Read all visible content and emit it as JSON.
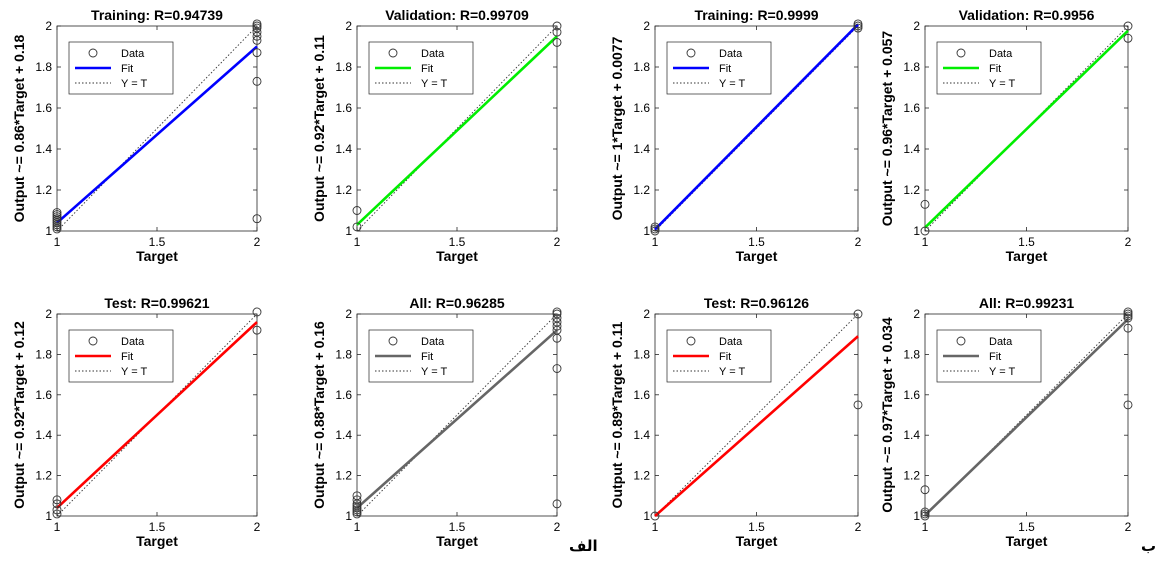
{
  "panel_tags": {
    "a": "الف",
    "b": "ب"
  },
  "legend": {
    "data": "Data",
    "fit": "Fit",
    "yt": "Y = T"
  },
  "colors": {
    "training": "#0000ff",
    "validation": "#00ee00",
    "test": "#ff0000",
    "all": "#666666"
  },
  "chart_data": [
    {
      "type": "scatter",
      "title": "Training: R=0.94739",
      "xlabel": "Target",
      "ylabel": "Output ~= 0.86*Target + 0.18",
      "xlim": [
        1,
        2
      ],
      "ylim": [
        1,
        2
      ],
      "xticks": [
        "1",
        "1.5",
        "2"
      ],
      "yticks": [
        "1",
        "1.2",
        "1.4",
        "1.6",
        "1.8",
        "2"
      ],
      "fit": {
        "slope": 0.86,
        "intercept": 0.18,
        "color": "training"
      },
      "points": [
        [
          1,
          1.01
        ],
        [
          1,
          1.02
        ],
        [
          1,
          1.03
        ],
        [
          1,
          1.04
        ],
        [
          1,
          1.05
        ],
        [
          1,
          1.06
        ],
        [
          1,
          1.07
        ],
        [
          1,
          1.08
        ],
        [
          1,
          1.09
        ],
        [
          2,
          2.01
        ],
        [
          2,
          2.0
        ],
        [
          2,
          1.99
        ],
        [
          2,
          1.97
        ],
        [
          2,
          1.95
        ],
        [
          2,
          1.93
        ],
        [
          2,
          1.87
        ],
        [
          2,
          1.73
        ],
        [
          2,
          1.06
        ]
      ]
    },
    {
      "type": "scatter",
      "title": "Validation: R=0.99709",
      "xlabel": "Target",
      "ylabel": "Output ~= 0.92*Target + 0.11",
      "xlim": [
        1,
        2
      ],
      "ylim": [
        1,
        2
      ],
      "xticks": [
        "1",
        "1.5",
        "2"
      ],
      "yticks": [
        "1",
        "1.2",
        "1.4",
        "1.6",
        "1.8",
        "2"
      ],
      "fit": {
        "slope": 0.92,
        "intercept": 0.11,
        "color": "validation"
      },
      "points": [
        [
          1,
          1.1
        ],
        [
          1,
          1.02
        ],
        [
          2,
          2.0
        ],
        [
          2,
          1.97
        ],
        [
          2,
          1.92
        ]
      ]
    },
    {
      "type": "scatter",
      "title": "Test: R=0.99621",
      "xlabel": "Target",
      "ylabel": "Output ~= 0.92*Target + 0.12",
      "xlim": [
        1,
        2
      ],
      "ylim": [
        1,
        2
      ],
      "xticks": [
        "1",
        "1.5",
        "2"
      ],
      "yticks": [
        "1",
        "1.2",
        "1.4",
        "1.6",
        "1.8",
        "2"
      ],
      "fit": {
        "slope": 0.92,
        "intercept": 0.12,
        "color": "test"
      },
      "points": [
        [
          1,
          1.08
        ],
        [
          1,
          1.06
        ],
        [
          1,
          1.03
        ],
        [
          1,
          1.01
        ],
        [
          2,
          2.01
        ],
        [
          2,
          1.92
        ]
      ]
    },
    {
      "type": "scatter",
      "title": "All: R=0.96285",
      "xlabel": "Target",
      "ylabel": "Output ~= 0.88*Target + 0.16",
      "xlim": [
        1,
        2
      ],
      "ylim": [
        1,
        2
      ],
      "xticks": [
        "1",
        "1.5",
        "2"
      ],
      "yticks": [
        "1",
        "1.2",
        "1.4",
        "1.6",
        "1.8",
        "2"
      ],
      "fit": {
        "slope": 0.88,
        "intercept": 0.16,
        "color": "all"
      },
      "points": [
        [
          1,
          1.1
        ],
        [
          1,
          1.08
        ],
        [
          1,
          1.06
        ],
        [
          1,
          1.05
        ],
        [
          1,
          1.04
        ],
        [
          1,
          1.03
        ],
        [
          1,
          1.02
        ],
        [
          1,
          1.01
        ],
        [
          2,
          2.01
        ],
        [
          2,
          2.0
        ],
        [
          2,
          1.98
        ],
        [
          2,
          1.96
        ],
        [
          2,
          1.94
        ],
        [
          2,
          1.92
        ],
        [
          2,
          1.88
        ],
        [
          2,
          1.73
        ],
        [
          2,
          1.06
        ]
      ]
    },
    {
      "type": "scatter",
      "title": "Training: R=0.9999",
      "xlabel": "Target",
      "ylabel": "Output ~= 1*Target + 0.0077",
      "xlim": [
        1,
        2
      ],
      "ylim": [
        1,
        2
      ],
      "xticks": [
        "1",
        "1.5",
        "2"
      ],
      "yticks": [
        "1",
        "1.2",
        "1.4",
        "1.6",
        "1.8",
        "2"
      ],
      "fit": {
        "slope": 1,
        "intercept": 0.0077,
        "color": "training"
      },
      "points": [
        [
          1,
          1.0
        ],
        [
          1,
          1.01
        ],
        [
          1,
          1.02
        ],
        [
          2,
          1.99
        ],
        [
          2,
          2.0
        ],
        [
          2,
          2.01
        ]
      ]
    },
    {
      "type": "scatter",
      "title": "Validation: R=0.9956",
      "xlabel": "Target",
      "ylabel": "Output ~= 0.96*Target + 0.057",
      "xlim": [
        1,
        2
      ],
      "ylim": [
        1,
        2
      ],
      "xticks": [
        "1",
        "1.5",
        "2"
      ],
      "yticks": [
        "1",
        "1.2",
        "1.4",
        "1.6",
        "1.8",
        "2"
      ],
      "fit": {
        "slope": 0.96,
        "intercept": 0.057,
        "color": "validation"
      },
      "points": [
        [
          1,
          1.13
        ],
        [
          1,
          1.0
        ],
        [
          2,
          2.0
        ],
        [
          2,
          1.94
        ]
      ]
    },
    {
      "type": "scatter",
      "title": "Test: R=0.96126",
      "xlabel": "Target",
      "ylabel": "Output ~= 0.89*Target + 0.11",
      "xlim": [
        1,
        2
      ],
      "ylim": [
        1,
        2
      ],
      "xticks": [
        "1",
        "1.5",
        "2"
      ],
      "yticks": [
        "1",
        "1.2",
        "1.4",
        "1.6",
        "1.8",
        "2"
      ],
      "fit": {
        "slope": 0.89,
        "intercept": 0.11,
        "color": "test"
      },
      "points": [
        [
          1,
          1.0
        ],
        [
          2,
          2.0
        ],
        [
          2,
          1.55
        ]
      ]
    },
    {
      "type": "scatter",
      "title": "All: R=0.99231",
      "xlabel": "Target",
      "ylabel": "Output ~= 0.97*Target + 0.034",
      "xlim": [
        1,
        2
      ],
      "ylim": [
        1,
        2
      ],
      "xticks": [
        "1",
        "1.5",
        "2"
      ],
      "yticks": [
        "1",
        "1.2",
        "1.4",
        "1.6",
        "1.8",
        "2"
      ],
      "fit": {
        "slope": 0.97,
        "intercept": 0.034,
        "color": "all"
      },
      "points": [
        [
          1,
          1.13
        ],
        [
          1,
          1.02
        ],
        [
          1,
          1.01
        ],
        [
          1,
          1.0
        ],
        [
          2,
          2.01
        ],
        [
          2,
          2.0
        ],
        [
          2,
          1.99
        ],
        [
          2,
          1.98
        ],
        [
          2,
          1.93
        ],
        [
          2,
          1.55
        ]
      ]
    }
  ]
}
